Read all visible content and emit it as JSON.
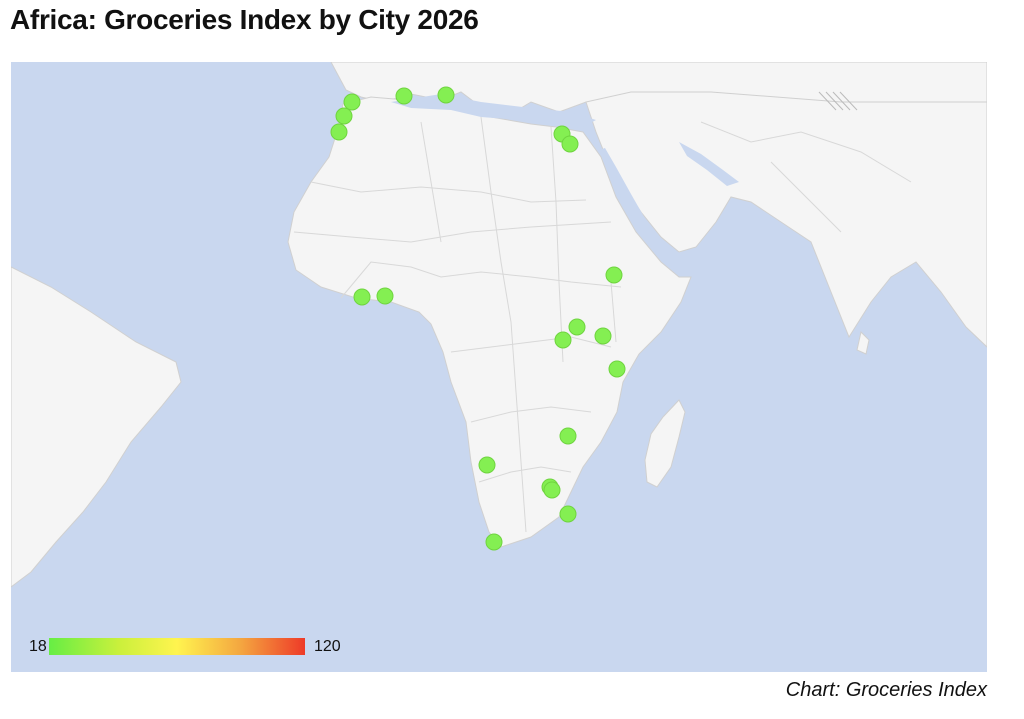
{
  "title": "Africa: Groceries Index by City 2026",
  "credit": "Chart: Groceries Index",
  "legend": {
    "min_label": "18",
    "max_label": "120",
    "colors": [
      "#66ee44",
      "#ccf03c",
      "#fff44f",
      "#f4a640",
      "#ee3a28"
    ]
  },
  "colors": {
    "ocean": "#c9d7ef",
    "land": "#f5f5f5",
    "border": "#d0d0d0",
    "marker": "#84ef52",
    "marker_stroke": "#6fd43f"
  }
}
